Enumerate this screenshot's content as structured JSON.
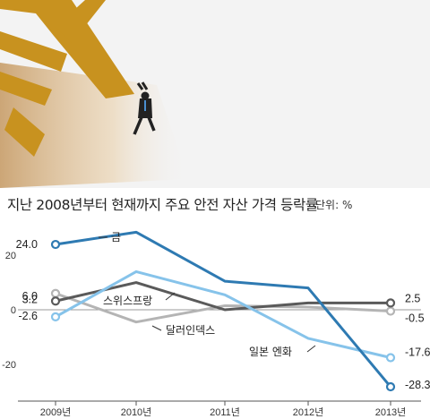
{
  "header": {
    "title": "지난 2008년부터 현재까지 주요 안전 자산 가격 등락률",
    "unit": "단위: %"
  },
  "colors": {
    "gold": "#2e7ab2",
    "swiss_franc": "#5a5a5a",
    "dollar_index": "#b4b4b4",
    "yen": "#86c3ea",
    "illustration_gold": "#c8921f"
  },
  "illustration": {
    "description_icon": "man-hanging-on-coin-symbol-icon"
  },
  "chart_data": {
    "type": "line",
    "title": "지난 2008년부터 현재까지 주요 안전 자산 가격 등락률",
    "ylabel": "",
    "unit": "단위: %",
    "x": [
      "2009년",
      "2010년",
      "2011년",
      "2012년",
      "2013년"
    ],
    "yticks": [
      20,
      0,
      -20
    ],
    "ylim": [
      -30,
      28
    ],
    "grid": false,
    "series": [
      {
        "name": "금",
        "color": "#2e7ab2",
        "values": [
          24.0,
          28.5,
          10.5,
          8.0,
          -28.3
        ],
        "start_label": "24.0",
        "end_label": "-28.3"
      },
      {
        "name": "스위스프랑",
        "color": "#5a5a5a",
        "values": [
          3.2,
          10.0,
          0.0,
          2.5,
          2.5
        ],
        "start_label": "3.2",
        "end_label": "2.5"
      },
      {
        "name": "달러인덱스",
        "color": "#b4b4b4",
        "values": [
          6.0,
          -4.5,
          1.5,
          1.0,
          -0.5
        ],
        "start_label": "6.0",
        "end_label": "-0.5"
      },
      {
        "name": "일본 엔화",
        "color": "#86c3ea",
        "values": [
          -2.6,
          14.0,
          5.5,
          -10.5,
          -17.6
        ],
        "start_label": "-2.6",
        "end_label": "-17.6"
      }
    ]
  }
}
